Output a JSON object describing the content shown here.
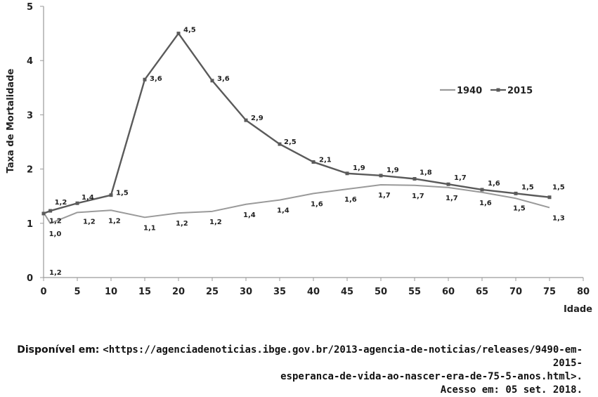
{
  "chart_data": {
    "type": "line",
    "title": "",
    "xlabel": "Idade",
    "ylabel": "Taxa de Mortalidade",
    "xlim": [
      0,
      80
    ],
    "ylim": [
      0,
      5
    ],
    "xticks": [
      0,
      5,
      10,
      15,
      20,
      25,
      30,
      35,
      40,
      45,
      50,
      55,
      60,
      65,
      70,
      75,
      80
    ],
    "yticks": [
      0,
      1,
      2,
      3,
      4,
      5
    ],
    "grid": false,
    "legend": "top-right",
    "series": [
      {
        "name": "1940",
        "color": "#9a9a9a",
        "x": [
          0,
          1,
          5,
          10,
          15,
          20,
          25,
          30,
          35,
          40,
          45,
          50,
          55,
          60,
          65,
          70,
          75
        ],
        "y": [
          1.2,
          1.0,
          1.2,
          1.24,
          1.11,
          1.19,
          1.22,
          1.35,
          1.43,
          1.55,
          1.63,
          1.71,
          1.7,
          1.66,
          1.57,
          1.46,
          1.29
        ],
        "labels": [
          "1,2",
          "1,0",
          "1,2",
          "1,2",
          "1,1",
          "1,2",
          "1,2",
          "1,4",
          "1,4",
          "1,6",
          "1,6",
          "1,7",
          "1,7",
          "1,7",
          "1,6",
          "1,5",
          "1,3"
        ]
      },
      {
        "name": "2015",
        "color": "#5a5a5a",
        "x": [
          0,
          1,
          5,
          10,
          15,
          20,
          25,
          30,
          35,
          40,
          45,
          50,
          55,
          60,
          65,
          70,
          75
        ],
        "y": [
          1.18,
          1.23,
          1.37,
          1.52,
          3.65,
          4.5,
          3.63,
          2.9,
          2.46,
          2.13,
          1.92,
          1.88,
          1.82,
          1.72,
          1.62,
          1.55,
          1.48
        ],
        "labels": [
          "1,2",
          "1,2",
          "1,4",
          "1,5",
          "3,6",
          "4,5",
          "3,6",
          "2,9",
          "2,5",
          "2,1",
          "1,9",
          "1,9",
          "1,8",
          "1,7",
          "1,6",
          "1,5",
          "1,5"
        ]
      }
    ]
  },
  "source": {
    "line1_prefix": "Disponível em: ",
    "line1_url": "<https://agenciadenoticias.ibge.gov.br/2013-agencia-de-noticias/releases/9490-em-2015-",
    "line2_url": "esperanca-de-vida-ao-nascer-era-de-75-5-anos.html>.",
    "line3": "Acesso em: 05 set. 2018."
  }
}
